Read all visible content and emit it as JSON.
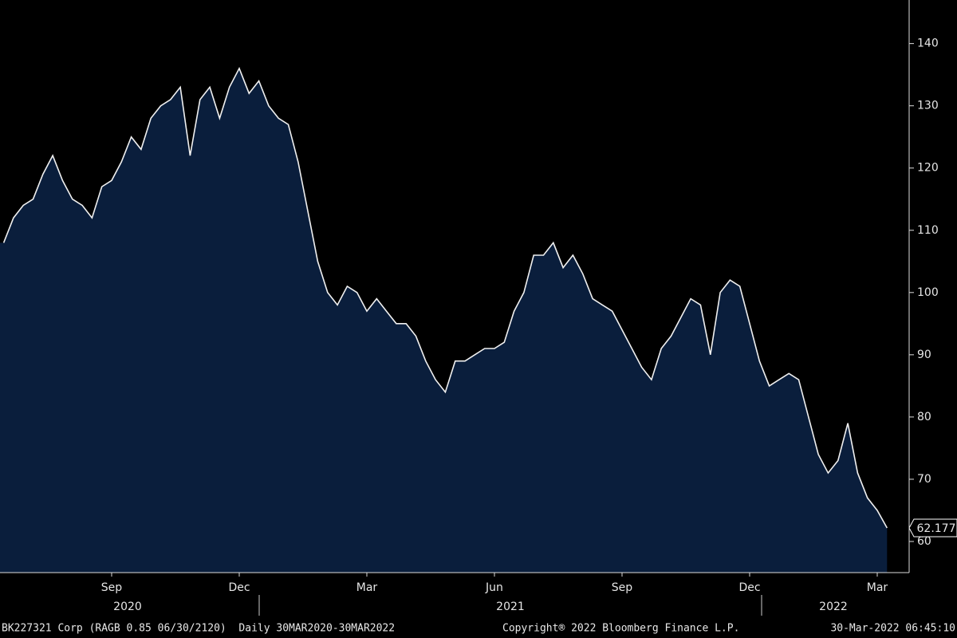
{
  "chart_data": {
    "type": "area",
    "categories": [
      null,
      null,
      null,
      null,
      null,
      null,
      null,
      null,
      null,
      null,
      null,
      "Sep",
      null,
      null,
      null,
      null,
      null,
      null,
      null,
      null,
      null,
      null,
      null,
      null,
      "Dec",
      null,
      null,
      null,
      null,
      null,
      null,
      null,
      null,
      null,
      null,
      null,
      null,
      "Mar",
      null,
      null,
      null,
      null,
      null,
      null,
      null,
      null,
      null,
      null,
      null,
      null,
      "Jun",
      null,
      null,
      null,
      null,
      null,
      null,
      null,
      null,
      null,
      null,
      null,
      null,
      "Sep",
      null,
      null,
      null,
      null,
      null,
      null,
      null,
      null,
      null,
      null,
      null,
      null,
      "Dec",
      null,
      null,
      null,
      null,
      null,
      null,
      null,
      null,
      null,
      null,
      null,
      null,
      "Mar",
      null
    ],
    "years": [
      "2020",
      "2021",
      "2022"
    ],
    "series": [
      {
        "color": "#0a1e3c",
        "values": [
          108,
          112,
          114,
          115,
          119,
          122,
          118,
          115,
          114,
          112,
          117,
          118,
          121,
          125,
          123,
          128,
          130,
          131,
          133,
          122,
          131,
          133,
          128,
          133,
          136,
          132,
          134,
          130,
          128,
          127,
          121,
          113,
          105,
          100,
          98,
          101,
          100,
          97,
          99,
          97,
          95,
          95,
          93,
          89,
          86,
          84,
          89,
          89,
          90,
          91,
          91,
          92,
          97,
          100,
          106,
          106,
          108,
          104,
          106,
          103,
          99,
          98,
          97,
          94,
          91,
          88,
          86,
          91,
          93,
          96,
          99,
          98,
          90,
          100,
          102,
          101,
          95,
          89,
          85,
          86,
          87,
          86,
          80,
          74,
          71,
          73,
          79,
          71,
          67,
          65,
          62.177
        ]
      }
    ],
    "ylim": [
      55,
      147
    ],
    "yticks": [
      60,
      70,
      80,
      90,
      100,
      110,
      120,
      130,
      140
    ],
    "footer": {
      "left": "BK227321 Corp (RAGB 0.85 06/30/2120)  Daily 30MAR2020-30MAR2022",
      "center": "Copyright® 2022 Bloomberg Finance L.P.",
      "right": "30-Mar-2022 06:45:10"
    }
  }
}
